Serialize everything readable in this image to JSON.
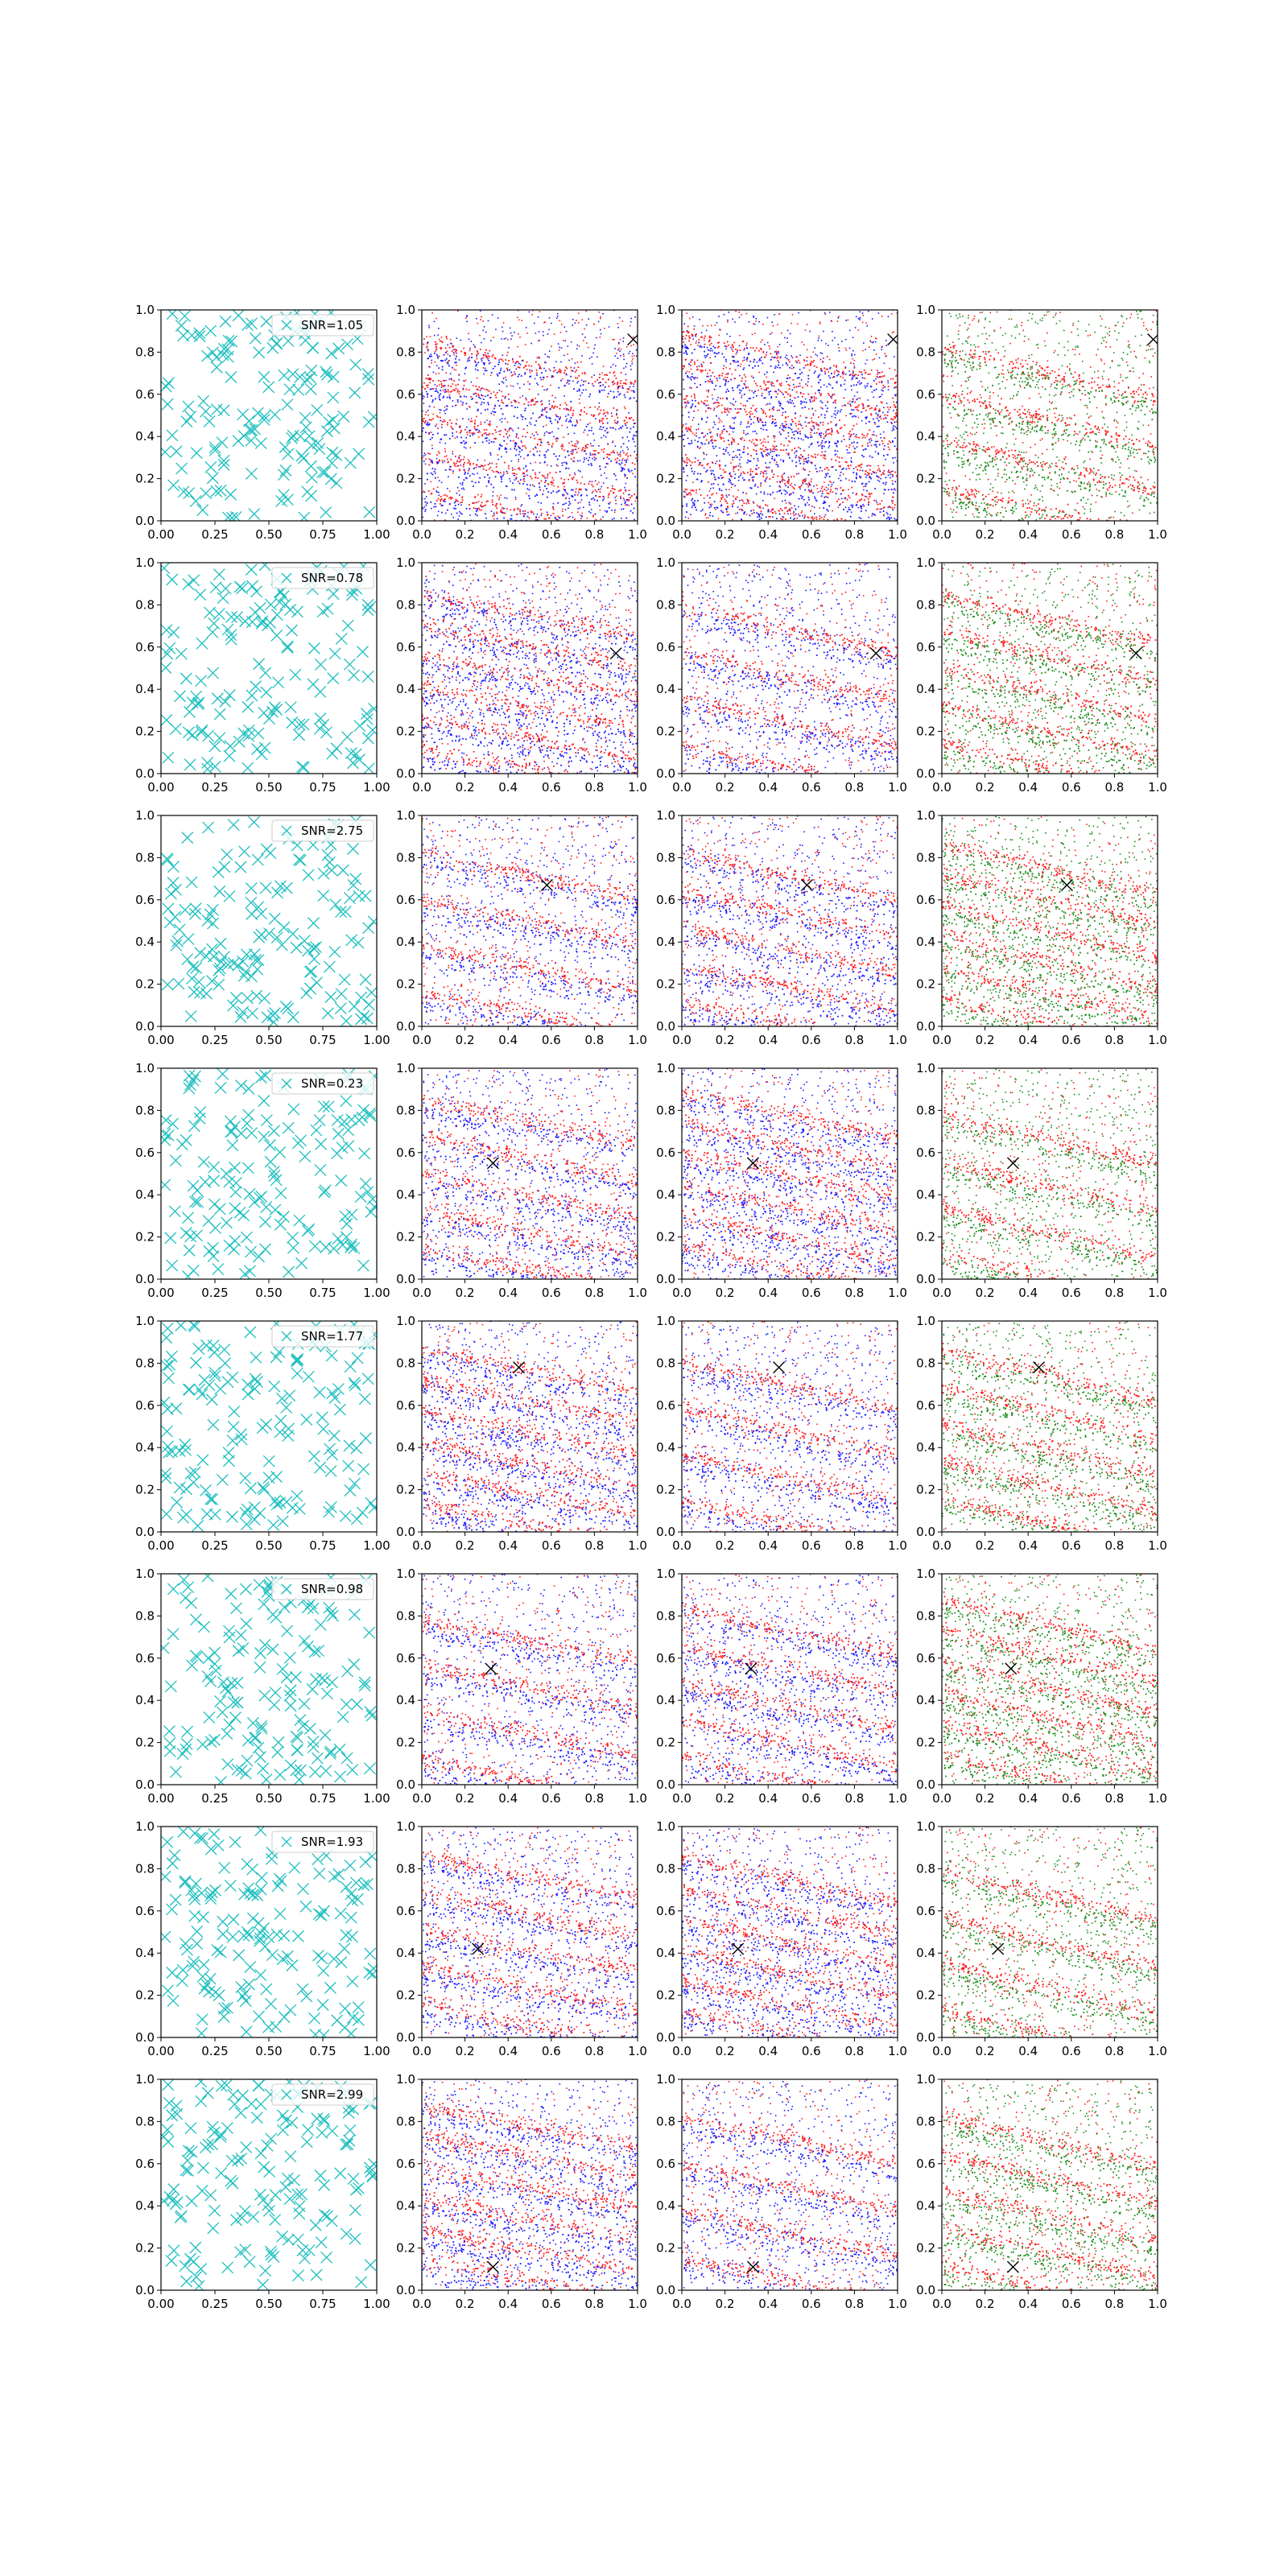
{
  "figure": {
    "rows": 8,
    "cols": 4,
    "colors": {
      "marker_panel": "#1fbfbf",
      "blue": "#1a1aff",
      "red": "#ff1a1a",
      "green": "#1a8c1a",
      "source_marker": "#000000",
      "axes": "#000000"
    }
  },
  "chart_data": [
    {
      "row": 1,
      "type": "scatter",
      "legend": "SNR=1.05",
      "source": [
        0.98,
        0.86
      ],
      "panels": [
        {
          "col": 1,
          "type": "scatter",
          "marker": "x",
          "xlim": [
            0,
            1
          ],
          "ylim": [
            0,
            1
          ],
          "xticks": [
            "0.00",
            "0.25",
            "0.50",
            "0.75",
            "1.00"
          ],
          "yticks": [
            "0.0",
            "0.2",
            "0.4",
            "0.6",
            "0.8",
            "1.0"
          ]
        },
        {
          "col": 2,
          "type": "scatter",
          "colors": [
            "blue",
            "red"
          ],
          "xlim": [
            0,
            1
          ],
          "ylim": [
            0,
            1
          ],
          "xticks": [
            "0.0",
            "0.2",
            "0.4",
            "0.6",
            "0.8",
            "1.0"
          ],
          "yticks": [
            "0.0",
            "0.2",
            "0.4",
            "0.6",
            "0.8",
            "1.0"
          ]
        },
        {
          "col": 3,
          "type": "scatter",
          "colors": [
            "blue",
            "red"
          ],
          "xlim": [
            0,
            1
          ],
          "ylim": [
            0,
            1
          ],
          "xticks": [
            "0.0",
            "0.2",
            "0.4",
            "0.6",
            "0.8",
            "1.0"
          ],
          "yticks": [
            "0.0",
            "0.2",
            "0.4",
            "0.6",
            "0.8",
            "1.0"
          ]
        },
        {
          "col": 4,
          "type": "scatter",
          "colors": [
            "green",
            "red"
          ],
          "xlim": [
            0,
            1
          ],
          "ylim": [
            0,
            1
          ],
          "xticks": [
            "0.0",
            "0.2",
            "0.4",
            "0.6",
            "0.8",
            "1.0"
          ],
          "yticks": [
            "0.0",
            "0.2",
            "0.4",
            "0.6",
            "0.8",
            "1.0"
          ]
        }
      ]
    },
    {
      "row": 2,
      "type": "scatter",
      "legend": "SNR=0.78",
      "source": [
        0.9,
        0.57
      ],
      "panels": [
        {
          "col": 1,
          "type": "scatter",
          "marker": "x",
          "xlim": [
            0,
            1
          ],
          "ylim": [
            0,
            1
          ],
          "xticks": [
            "0.00",
            "0.25",
            "0.50",
            "0.75",
            "1.00"
          ],
          "yticks": [
            "0.0",
            "0.2",
            "0.4",
            "0.6",
            "0.8",
            "1.0"
          ]
        },
        {
          "col": 2,
          "type": "scatter",
          "colors": [
            "blue",
            "red"
          ],
          "xlim": [
            0,
            1
          ],
          "ylim": [
            0,
            1
          ],
          "xticks": [
            "0.0",
            "0.2",
            "0.4",
            "0.6",
            "0.8",
            "1.0"
          ],
          "yticks": [
            "0.0",
            "0.2",
            "0.4",
            "0.6",
            "0.8",
            "1.0"
          ]
        },
        {
          "col": 3,
          "type": "scatter",
          "colors": [
            "blue",
            "red"
          ],
          "xlim": [
            0,
            1
          ],
          "ylim": [
            0,
            1
          ],
          "xticks": [
            "0.0",
            "0.2",
            "0.4",
            "0.6",
            "0.8",
            "1.0"
          ],
          "yticks": [
            "0.0",
            "0.2",
            "0.4",
            "0.6",
            "0.8",
            "1.0"
          ]
        },
        {
          "col": 4,
          "type": "scatter",
          "colors": [
            "green",
            "red"
          ],
          "xlim": [
            0,
            1
          ],
          "ylim": [
            0,
            1
          ],
          "xticks": [
            "0.0",
            "0.2",
            "0.4",
            "0.6",
            "0.8",
            "1.0"
          ],
          "yticks": [
            "0.0",
            "0.2",
            "0.4",
            "0.6",
            "0.8",
            "1.0"
          ]
        }
      ]
    },
    {
      "row": 3,
      "type": "scatter",
      "legend": "SNR=2.75",
      "source": [
        0.58,
        0.67
      ],
      "panels": [
        {
          "col": 1,
          "type": "scatter",
          "marker": "x",
          "xlim": [
            0,
            1
          ],
          "ylim": [
            0,
            1
          ],
          "xticks": [
            "0.00",
            "0.25",
            "0.50",
            "0.75",
            "1.00"
          ],
          "yticks": [
            "0.0",
            "0.2",
            "0.4",
            "0.6",
            "0.8",
            "1.0"
          ]
        },
        {
          "col": 2,
          "type": "scatter",
          "colors": [
            "blue",
            "red"
          ],
          "xlim": [
            0,
            1
          ],
          "ylim": [
            0,
            1
          ],
          "xticks": [
            "0.0",
            "0.2",
            "0.4",
            "0.6",
            "0.8",
            "1.0"
          ],
          "yticks": [
            "0.0",
            "0.2",
            "0.4",
            "0.6",
            "0.8",
            "1.0"
          ]
        },
        {
          "col": 3,
          "type": "scatter",
          "colors": [
            "blue",
            "red"
          ],
          "xlim": [
            0,
            1
          ],
          "ylim": [
            0,
            1
          ],
          "xticks": [
            "0.0",
            "0.2",
            "0.4",
            "0.6",
            "0.8",
            "1.0"
          ],
          "yticks": [
            "0.0",
            "0.2",
            "0.4",
            "0.6",
            "0.8",
            "1.0"
          ]
        },
        {
          "col": 4,
          "type": "scatter",
          "colors": [
            "green",
            "red"
          ],
          "xlim": [
            0,
            1
          ],
          "ylim": [
            0,
            1
          ],
          "xticks": [
            "0.0",
            "0.2",
            "0.4",
            "0.6",
            "0.8",
            "1.0"
          ],
          "yticks": [
            "0.0",
            "0.2",
            "0.4",
            "0.6",
            "0.8",
            "1.0"
          ]
        }
      ]
    },
    {
      "row": 4,
      "type": "scatter",
      "legend": "SNR=0.23",
      "source": [
        0.33,
        0.55
      ],
      "panels": [
        {
          "col": 1,
          "type": "scatter",
          "marker": "x",
          "xlim": [
            0,
            1
          ],
          "ylim": [
            0,
            1
          ],
          "xticks": [
            "0.00",
            "0.25",
            "0.50",
            "0.75",
            "1.00"
          ],
          "yticks": [
            "0.0",
            "0.2",
            "0.4",
            "0.6",
            "0.8",
            "1.0"
          ]
        },
        {
          "col": 2,
          "type": "scatter",
          "colors": [
            "blue",
            "red"
          ],
          "xlim": [
            0,
            1
          ],
          "ylim": [
            0,
            1
          ],
          "xticks": [
            "0.0",
            "0.2",
            "0.4",
            "0.6",
            "0.8",
            "1.0"
          ],
          "yticks": [
            "0.0",
            "0.2",
            "0.4",
            "0.6",
            "0.8",
            "1.0"
          ]
        },
        {
          "col": 3,
          "type": "scatter",
          "colors": [
            "blue",
            "red"
          ],
          "xlim": [
            0,
            1
          ],
          "ylim": [
            0,
            1
          ],
          "xticks": [
            "0.0",
            "0.2",
            "0.4",
            "0.6",
            "0.8",
            "1.0"
          ],
          "yticks": [
            "0.0",
            "0.2",
            "0.4",
            "0.6",
            "0.8",
            "1.0"
          ]
        },
        {
          "col": 4,
          "type": "scatter",
          "colors": [
            "green",
            "red"
          ],
          "xlim": [
            0,
            1
          ],
          "ylim": [
            0,
            1
          ],
          "xticks": [
            "0.0",
            "0.2",
            "0.4",
            "0.6",
            "0.8",
            "1.0"
          ],
          "yticks": [
            "0.0",
            "0.2",
            "0.4",
            "0.6",
            "0.8",
            "1.0"
          ]
        }
      ]
    },
    {
      "row": 5,
      "type": "scatter",
      "legend": "SNR=1.77",
      "source": [
        0.45,
        0.78
      ],
      "panels": [
        {
          "col": 1,
          "type": "scatter",
          "marker": "x",
          "xlim": [
            0,
            1
          ],
          "ylim": [
            0,
            1
          ],
          "xticks": [
            "0.00",
            "0.25",
            "0.50",
            "0.75",
            "1.00"
          ],
          "yticks": [
            "0.0",
            "0.2",
            "0.4",
            "0.6",
            "0.8",
            "1.0"
          ]
        },
        {
          "col": 2,
          "type": "scatter",
          "colors": [
            "blue",
            "red"
          ],
          "xlim": [
            0,
            1
          ],
          "ylim": [
            0,
            1
          ],
          "xticks": [
            "0.0",
            "0.2",
            "0.4",
            "0.6",
            "0.8",
            "1.0"
          ],
          "yticks": [
            "0.0",
            "0.2",
            "0.4",
            "0.6",
            "0.8",
            "1.0"
          ]
        },
        {
          "col": 3,
          "type": "scatter",
          "colors": [
            "blue",
            "red"
          ],
          "xlim": [
            0,
            1
          ],
          "ylim": [
            0,
            1
          ],
          "xticks": [
            "0.0",
            "0.2",
            "0.4",
            "0.6",
            "0.8",
            "1.0"
          ],
          "yticks": [
            "0.0",
            "0.2",
            "0.4",
            "0.6",
            "0.8",
            "1.0"
          ]
        },
        {
          "col": 4,
          "type": "scatter",
          "colors": [
            "green",
            "red"
          ],
          "xlim": [
            0,
            1
          ],
          "ylim": [
            0,
            1
          ],
          "xticks": [
            "0.0",
            "0.2",
            "0.4",
            "0.6",
            "0.8",
            "1.0"
          ],
          "yticks": [
            "0.0",
            "0.2",
            "0.4",
            "0.6",
            "0.8",
            "1.0"
          ]
        }
      ]
    },
    {
      "row": 6,
      "type": "scatter",
      "legend": "SNR=0.98",
      "source": [
        0.32,
        0.55
      ],
      "panels": [
        {
          "col": 1,
          "type": "scatter",
          "marker": "x",
          "xlim": [
            0,
            1
          ],
          "ylim": [
            0,
            1
          ],
          "xticks": [
            "0.00",
            "0.25",
            "0.50",
            "0.75",
            "1.00"
          ],
          "yticks": [
            "0.0",
            "0.2",
            "0.4",
            "0.6",
            "0.8",
            "1.0"
          ]
        },
        {
          "col": 2,
          "type": "scatter",
          "colors": [
            "blue",
            "red"
          ],
          "xlim": [
            0,
            1
          ],
          "ylim": [
            0,
            1
          ],
          "xticks": [
            "0.0",
            "0.2",
            "0.4",
            "0.6",
            "0.8",
            "1.0"
          ],
          "yticks": [
            "0.0",
            "0.2",
            "0.4",
            "0.6",
            "0.8",
            "1.0"
          ]
        },
        {
          "col": 3,
          "type": "scatter",
          "colors": [
            "blue",
            "red"
          ],
          "xlim": [
            0,
            1
          ],
          "ylim": [
            0,
            1
          ],
          "xticks": [
            "0.0",
            "0.2",
            "0.4",
            "0.6",
            "0.8",
            "1.0"
          ],
          "yticks": [
            "0.0",
            "0.2",
            "0.4",
            "0.6",
            "0.8",
            "1.0"
          ]
        },
        {
          "col": 4,
          "type": "scatter",
          "colors": [
            "green",
            "red"
          ],
          "xlim": [
            0,
            1
          ],
          "ylim": [
            0,
            1
          ],
          "xticks": [
            "0.0",
            "0.2",
            "0.4",
            "0.6",
            "0.8",
            "1.0"
          ],
          "yticks": [
            "0.0",
            "0.2",
            "0.4",
            "0.6",
            "0.8",
            "1.0"
          ]
        }
      ]
    },
    {
      "row": 7,
      "type": "scatter",
      "legend": "SNR=1.93",
      "source": [
        0.26,
        0.42
      ],
      "panels": [
        {
          "col": 1,
          "type": "scatter",
          "marker": "x",
          "xlim": [
            0,
            1
          ],
          "ylim": [
            0,
            1
          ],
          "xticks": [
            "0.00",
            "0.25",
            "0.50",
            "0.75",
            "1.00"
          ],
          "yticks": [
            "0.0",
            "0.2",
            "0.4",
            "0.6",
            "0.8",
            "1.0"
          ]
        },
        {
          "col": 2,
          "type": "scatter",
          "colors": [
            "blue",
            "red"
          ],
          "xlim": [
            0,
            1
          ],
          "ylim": [
            0,
            1
          ],
          "xticks": [
            "0.0",
            "0.2",
            "0.4",
            "0.6",
            "0.8",
            "1.0"
          ],
          "yticks": [
            "0.0",
            "0.2",
            "0.4",
            "0.6",
            "0.8",
            "1.0"
          ]
        },
        {
          "col": 3,
          "type": "scatter",
          "colors": [
            "blue",
            "red"
          ],
          "xlim": [
            0,
            1
          ],
          "ylim": [
            0,
            1
          ],
          "xticks": [
            "0.0",
            "0.2",
            "0.4",
            "0.6",
            "0.8",
            "1.0"
          ],
          "yticks": [
            "0.0",
            "0.2",
            "0.4",
            "0.6",
            "0.8",
            "1.0"
          ]
        },
        {
          "col": 4,
          "type": "scatter",
          "colors": [
            "green",
            "red"
          ],
          "xlim": [
            0,
            1
          ],
          "ylim": [
            0,
            1
          ],
          "xticks": [
            "0.0",
            "0.2",
            "0.4",
            "0.6",
            "0.8",
            "1.0"
          ],
          "yticks": [
            "0.0",
            "0.2",
            "0.4",
            "0.6",
            "0.8",
            "1.0"
          ]
        }
      ]
    },
    {
      "row": 8,
      "type": "scatter",
      "legend": "SNR=2.99",
      "source": [
        0.33,
        0.11
      ],
      "panels": [
        {
          "col": 1,
          "type": "scatter",
          "marker": "x",
          "xlim": [
            0,
            1
          ],
          "ylim": [
            0,
            1
          ],
          "xticks": [
            "0.00",
            "0.25",
            "0.50",
            "0.75",
            "1.00"
          ],
          "yticks": [
            "0.0",
            "0.2",
            "0.4",
            "0.6",
            "0.8",
            "1.0"
          ]
        },
        {
          "col": 2,
          "type": "scatter",
          "colors": [
            "blue",
            "red"
          ],
          "xlim": [
            0,
            1
          ],
          "ylim": [
            0,
            1
          ],
          "xticks": [
            "0.0",
            "0.2",
            "0.4",
            "0.6",
            "0.8",
            "1.0"
          ],
          "yticks": [
            "0.0",
            "0.2",
            "0.4",
            "0.6",
            "0.8",
            "1.0"
          ]
        },
        {
          "col": 3,
          "type": "scatter",
          "colors": [
            "blue",
            "red"
          ],
          "xlim": [
            0,
            1
          ],
          "ylim": [
            0,
            1
          ],
          "xticks": [
            "0.0",
            "0.2",
            "0.4",
            "0.6",
            "0.8",
            "1.0"
          ],
          "yticks": [
            "0.0",
            "0.2",
            "0.4",
            "0.6",
            "0.8",
            "1.0"
          ]
        },
        {
          "col": 4,
          "type": "scatter",
          "colors": [
            "green",
            "red"
          ],
          "xlim": [
            0,
            1
          ],
          "ylim": [
            0,
            1
          ],
          "xticks": [
            "0.0",
            "0.2",
            "0.4",
            "0.6",
            "0.8",
            "1.0"
          ],
          "yticks": [
            "0.0",
            "0.2",
            "0.4",
            "0.6",
            "0.8",
            "1.0"
          ]
        }
      ]
    }
  ]
}
